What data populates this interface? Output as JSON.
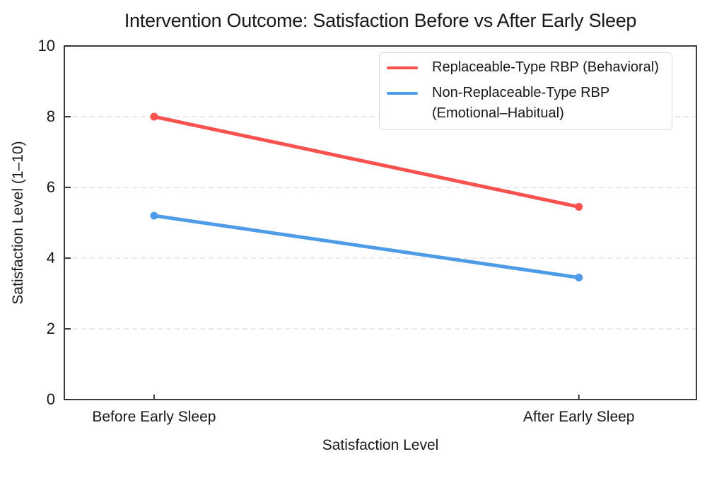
{
  "figure": {
    "background": "#ffffff"
  },
  "chart_data": {
    "type": "line",
    "title": "Intervention Outcome: Satisfaction Before vs After Early Sleep",
    "xlabel": "Satisfaction Level",
    "ylabel": "Satisfaction Level (1–10)",
    "categories": [
      "Before Early Sleep",
      "After Early Sleep"
    ],
    "series": [
      {
        "name": "Replaceable-Type RBP (Behavioral)",
        "legend_lines": [
          "Replaceable-Type RBP (Behavioral)"
        ],
        "color": "#F8514E",
        "values": [
          8.0,
          5.45
        ]
      },
      {
        "name": "Non-Replaceable-Type RBP (Emotional–Habitual)",
        "legend_lines": [
          "Non-Replaceable-Type RBP",
          "(Emotional–Habitual)"
        ],
        "color": "#4E9BE8",
        "values": [
          5.2,
          3.45
        ]
      }
    ],
    "ylim": [
      0,
      10
    ],
    "yticks": [
      0,
      2,
      4,
      6,
      8,
      10
    ],
    "grid": "horizontal-dashed",
    "legend_position": "top-right",
    "axis_color": "#262626",
    "grid_color": "#e3e3e3",
    "text_color": "#191919"
  }
}
